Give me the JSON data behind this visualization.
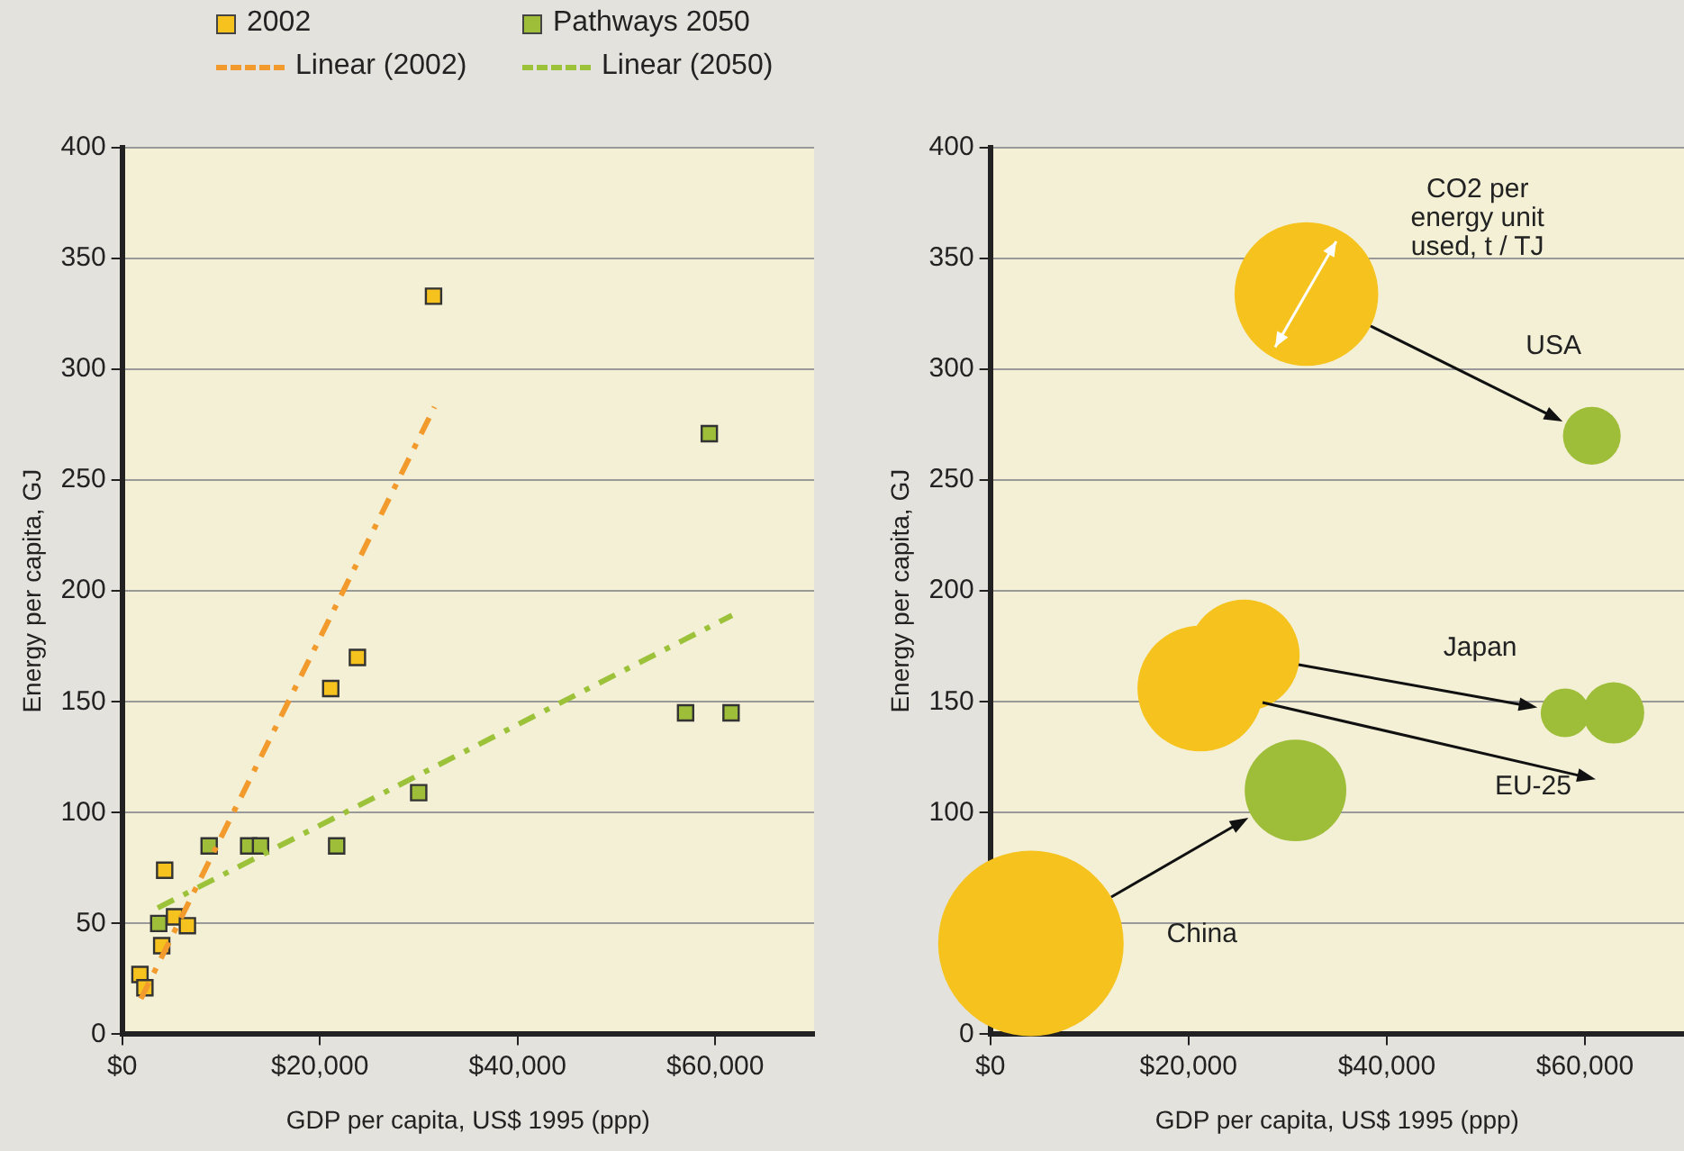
{
  "chart_data": [
    {
      "type": "scatter",
      "xlabel": "GDP per capita, US$ 1995 (ppp)",
      "ylabel": "Energy per capita, GJ",
      "legend": "top",
      "grid": "y",
      "marker": "square",
      "xlim": [
        0,
        70000
      ],
      "xticks": [
        {
          "value": 0,
          "label": "$0"
        },
        {
          "value": 20000,
          "label": "$20,000"
        },
        {
          "value": 40000,
          "label": "$40,000"
        },
        {
          "value": 60000,
          "label": "$60,000"
        }
      ],
      "ylim": [
        0,
        400
      ],
      "yticks": [
        0,
        50,
        100,
        150,
        200,
        250,
        300,
        350,
        400
      ],
      "series": [
        {
          "name": "2002",
          "color": "#f6c31e",
          "x": [
            1800,
            2300,
            4300,
            4000,
            5300,
            6600,
            21100,
            23800,
            31500
          ],
          "values": [
            27,
            21,
            74,
            40,
            53,
            49,
            156,
            170,
            333
          ]
        },
        {
          "name": "Pathways 2050",
          "color": "#9ebd38",
          "x": [
            3700,
            8800,
            12800,
            14000,
            21700,
            30000,
            57000,
            61600,
            59400
          ],
          "values": [
            50,
            85,
            85,
            85,
            85,
            109,
            145,
            145,
            271
          ]
        },
        {
          "name": "Linear (2002)",
          "type": "line",
          "line_style": "dashed",
          "marker": "none",
          "color": "#f29a2b",
          "x": [
            1900,
            31600
          ],
          "values": [
            16,
            283
          ]
        },
        {
          "name": "Linear (2050)",
          "type": "line",
          "line_style": "dashed",
          "marker": "none",
          "color": "#9cc23a",
          "x": [
            3600,
            61700
          ],
          "values": [
            57,
            189
          ]
        }
      ]
    },
    {
      "type": "bubble",
      "xlabel": "GDP per capita, US$ 1995 (ppp)",
      "ylabel": "Energy per capita, GJ",
      "legend": false,
      "grid": "y",
      "xlim": [
        0,
        70000
      ],
      "xticks": [
        {
          "value": 0,
          "label": "$0"
        },
        {
          "value": 20000,
          "label": "$20,000"
        },
        {
          "value": 40000,
          "label": "$40,000"
        },
        {
          "value": 60000,
          "label": "$60,000"
        }
      ],
      "ylim": [
        0,
        400
      ],
      "yticks": [
        0,
        {
          "value": 50,
          "label": null
        },
        100,
        150,
        200,
        250,
        300,
        350,
        400
      ],
      "series": [
        {
          "color": "#f6c31e",
          "x": [
            31900,
            25600,
            21200,
            4100
          ],
          "values": [
            334,
            171,
            156,
            41
          ],
          "sizes": [
            0.6,
            0.36,
            0.46,
            1
          ]
        },
        {
          "color": "#9ebd38",
          "x": [
            60700,
            58000,
            62900,
            30800
          ],
          "values": [
            270,
            145,
            145,
            110
          ],
          "sizes": [
            0.097,
            0.069,
            0.109,
            0.3
          ]
        }
      ],
      "annotations": [
        "CO2 per energy unit used, t / TJ",
        "USA",
        "Japan",
        "EU-25",
        "China"
      ]
    }
  ]
}
